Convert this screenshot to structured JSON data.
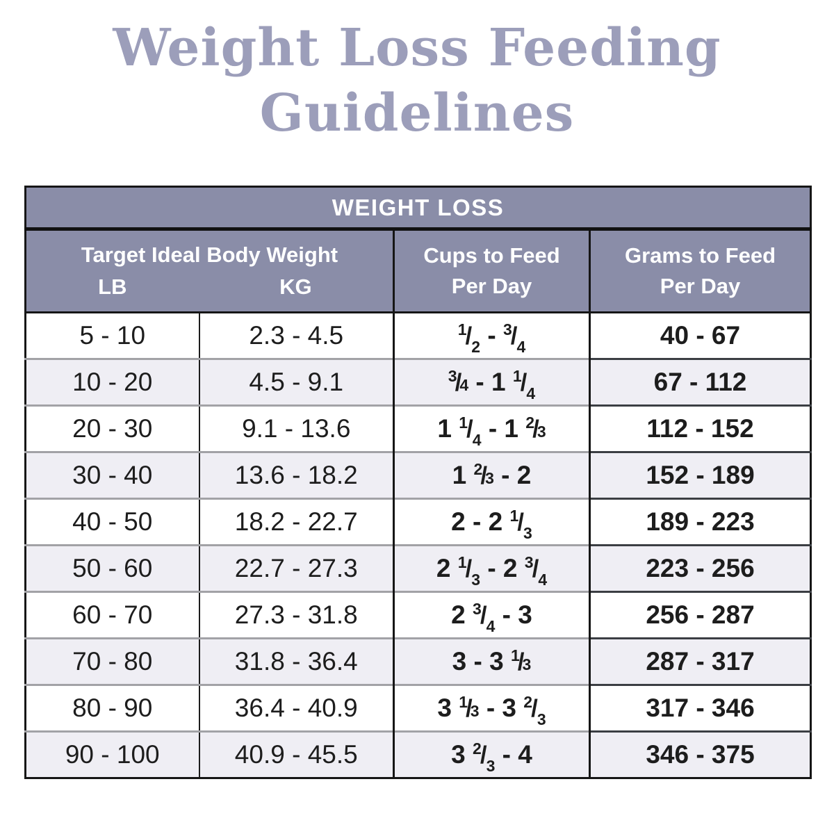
{
  "title": {
    "line1": "Weight Loss Feeding",
    "line2": "Guidelines",
    "color": "#9c9eba"
  },
  "table": {
    "banner": "WEIGHT LOSS",
    "headers": {
      "target_title": "Target Ideal Body Weight",
      "lb": "LB",
      "kg": "KG",
      "cups_line1": "Cups to Feed",
      "cups_line2": "Per Day",
      "grams_line1": "Grams to Feed",
      "grams_line2": "Per Day"
    },
    "colors": {
      "header_bg": "#8a8da8",
      "alt_row_bg": "#efeef4",
      "row_bg": "#ffffff",
      "light_border": "#a2a2a6",
      "dark_border": "#161616",
      "grams_border": "#3b3e43",
      "text": "#1d1d1d"
    },
    "rows": [
      {
        "lb": "5 - 10",
        "kg": "2.3 - 4.5",
        "grams": "40 - 67",
        "cups": [
          {
            "frac": [
              "1",
              "2"
            ],
            "style": "sub"
          },
          {
            "text": " - "
          },
          {
            "frac": [
              "3",
              "4"
            ],
            "style": "sub"
          }
        ]
      },
      {
        "lb": "10 - 20",
        "kg": "4.5 - 9.1",
        "grams": "67 - 112",
        "cups": [
          {
            "frac": [
              "3",
              "4"
            ],
            "style": "uni"
          },
          {
            "text": " - 1 "
          },
          {
            "frac": [
              "1",
              "4"
            ],
            "style": "sub"
          }
        ]
      },
      {
        "lb": "20 - 30",
        "kg": "9.1 - 13.6",
        "grams": "112 - 152",
        "cups": [
          {
            "text": "1 "
          },
          {
            "frac": [
              "1",
              "4"
            ],
            "style": "sub"
          },
          {
            "text": " - 1 "
          },
          {
            "frac": [
              "2",
              "3"
            ],
            "style": "uni"
          }
        ]
      },
      {
        "lb": "30 - 40",
        "kg": "13.6 - 18.2",
        "grams": "152 - 189",
        "cups": [
          {
            "text": "1 "
          },
          {
            "frac": [
              "2",
              "3"
            ],
            "style": "uni"
          },
          {
            "text": " - 2"
          }
        ]
      },
      {
        "lb": "40 - 50",
        "kg": "18.2 - 22.7",
        "grams": "189 - 223",
        "cups": [
          {
            "text": "2 - 2 "
          },
          {
            "frac": [
              "1",
              "3"
            ],
            "style": "sub"
          }
        ]
      },
      {
        "lb": "50 - 60",
        "kg": "22.7 - 27.3",
        "grams": "223 - 256",
        "cups": [
          {
            "text": "2 "
          },
          {
            "frac": [
              "1",
              "3"
            ],
            "style": "sub"
          },
          {
            "text": " - 2 "
          },
          {
            "frac": [
              "3",
              "4"
            ],
            "style": "sub"
          }
        ]
      },
      {
        "lb": "60 - 70",
        "kg": "27.3 - 31.8",
        "grams": "256 - 287",
        "cups": [
          {
            "text": "2 "
          },
          {
            "frac": [
              "3",
              "4"
            ],
            "style": "sub"
          },
          {
            "text": " - 3"
          }
        ]
      },
      {
        "lb": "70 - 80",
        "kg": "31.8 - 36.4",
        "grams": "287 - 317",
        "cups": [
          {
            "text": "3 - 3 "
          },
          {
            "frac": [
              "1",
              "3"
            ],
            "style": "uni"
          }
        ]
      },
      {
        "lb": "80 - 90",
        "kg": "36.4 - 40.9",
        "grams": "317 - 346",
        "cups": [
          {
            "text": "3 "
          },
          {
            "frac": [
              "1",
              "3"
            ],
            "style": "uni"
          },
          {
            "text": " - 3 "
          },
          {
            "frac": [
              "2",
              "3"
            ],
            "style": "sub"
          }
        ]
      },
      {
        "lb": "90 - 100",
        "kg": "40.9 - 45.5",
        "grams": "346 - 375",
        "cups": [
          {
            "text": "3 "
          },
          {
            "frac": [
              "2",
              "3"
            ],
            "style": "sub"
          },
          {
            "text": " - 4"
          }
        ]
      }
    ]
  }
}
